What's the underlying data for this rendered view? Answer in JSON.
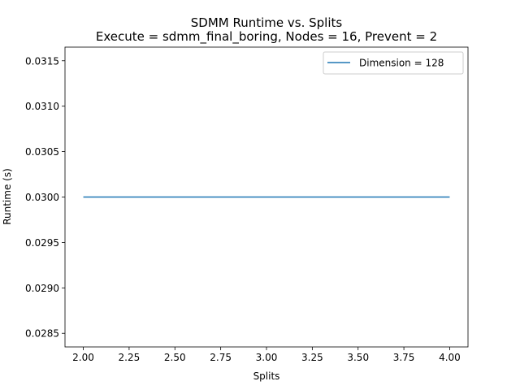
{
  "chart_data": {
    "type": "line",
    "title": "SDMM Runtime vs. Splits",
    "subtitle": "Execute = sdmm_final_boring, Nodes = 16, Prevent = 2",
    "xlabel": "Splits",
    "ylabel": "Runtime (s)",
    "xlim": [
      1.9,
      4.1
    ],
    "ylim": [
      0.02835,
      0.03165
    ],
    "xticks": [
      2.0,
      2.25,
      2.5,
      2.75,
      3.0,
      3.25,
      3.5,
      3.75,
      4.0
    ],
    "xtick_labels": [
      "2.00",
      "2.25",
      "2.50",
      "2.75",
      "3.00",
      "3.25",
      "3.50",
      "3.75",
      "4.00"
    ],
    "yticks": [
      0.0285,
      0.029,
      0.0295,
      0.03,
      0.0305,
      0.031,
      0.0315
    ],
    "ytick_labels": [
      "0.0285",
      "0.0290",
      "0.0295",
      "0.0300",
      "0.0305",
      "0.0310",
      "0.0315"
    ],
    "grid": false,
    "legend_position": "top-right",
    "series": [
      {
        "name": "Dimension = 128",
        "color": "#1f77b4",
        "x": [
          2,
          3,
          4
        ],
        "values": [
          0.03,
          0.03,
          0.03
        ]
      }
    ]
  }
}
